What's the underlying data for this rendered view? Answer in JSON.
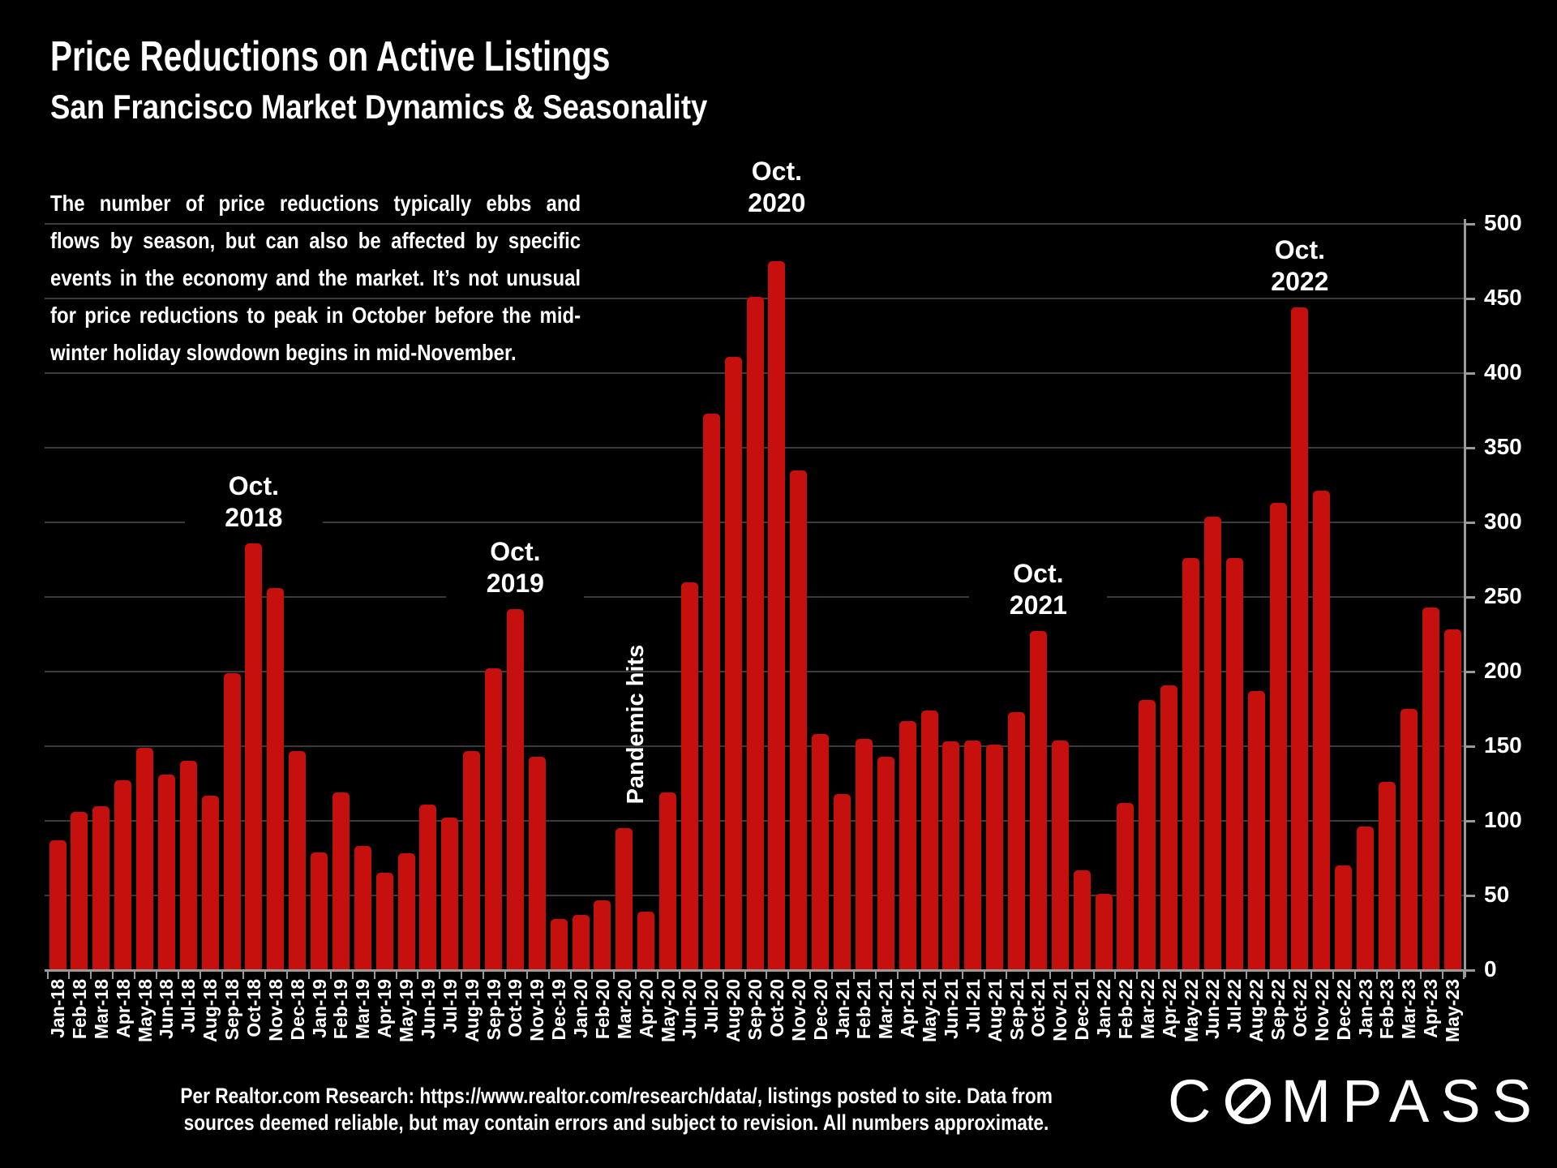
{
  "header": {
    "title": "Price Reductions on Active Listings",
    "subtitle": "San Francisco Market Dynamics & Seasonality"
  },
  "description": {
    "lines": [
      "The number of price reductions typically ebbs and",
      "flows by season, but can also be affected by specific",
      "events in the economy and the market. It’s not unusual",
      "for price reductions to peak in October before the mid-",
      "winter holiday slowdown begins in mid-November."
    ]
  },
  "chart_data": {
    "type": "bar",
    "title": "Price Reductions on Active Listings",
    "categories": [
      "Jan-18",
      "Feb-18",
      "Mar-18",
      "Apr-18",
      "May-18",
      "Jun-18",
      "Jul-18",
      "Aug-18",
      "Sep-18",
      "Oct-18",
      "Nov-18",
      "Dec-18",
      "Jan-19",
      "Feb-19",
      "Mar-19",
      "Apr-19",
      "May-19",
      "Jun-19",
      "Jul-19",
      "Aug-19",
      "Sep-19",
      "Oct-19",
      "Nov-19",
      "Dec-19",
      "Jan-20",
      "Feb-20",
      "Mar-20",
      "Apr-20",
      "May-20",
      "Jun-20",
      "Jul-20",
      "Aug-20",
      "Sep-20",
      "Oct-20",
      "Nov-20",
      "Dec-20",
      "Jan-21",
      "Feb-21",
      "Mar-21",
      "Apr-21",
      "May-21",
      "Jun-21",
      "Jul-21",
      "Aug-21",
      "Sep-21",
      "Oct-21",
      "Nov-21",
      "Dec-21",
      "Jan-22",
      "Feb-22",
      "Mar-22",
      "Apr-22",
      "May-22",
      "Jun-22",
      "Jul-22",
      "Aug-22",
      "Sep-22",
      "Oct-22",
      "Nov-22",
      "Dec-22",
      "Jan-23",
      "Feb-23",
      "Mar-23",
      "Apr-23",
      "May-23"
    ],
    "values": [
      87,
      106,
      110,
      127,
      149,
      131,
      140,
      117,
      199,
      286,
      256,
      147,
      79,
      119,
      83,
      65,
      78,
      111,
      102,
      147,
      202,
      242,
      143,
      34,
      37,
      47,
      95,
      39,
      119,
      260,
      373,
      411,
      451,
      475,
      335,
      158,
      118,
      155,
      143,
      167,
      174,
      153,
      154,
      151,
      173,
      227,
      154,
      67,
      51,
      112,
      181,
      191,
      276,
      304,
      276,
      187,
      313,
      444,
      321,
      70,
      96,
      126,
      175,
      243,
      228
    ],
    "xlabel": "",
    "ylabel": "",
    "ylim": [
      0,
      500
    ],
    "ytick_interval": 50,
    "yticks": [
      0,
      50,
      100,
      150,
      200,
      250,
      300,
      350,
      400,
      450,
      500
    ],
    "y_axis_side": "right",
    "grid": true,
    "legend": false,
    "bar_color": "#c6100e",
    "background_color": "#000000",
    "gridline_color": "#3b3b3b",
    "axis_color": "#9a9a9a",
    "annotations": [
      {
        "month": "Oct-18",
        "lines": [
          "Oct.",
          "2018"
        ]
      },
      {
        "month": "Oct-19",
        "lines": [
          "Oct.",
          "2019"
        ]
      },
      {
        "month": "Oct-20",
        "lines": [
          "Oct.",
          "2020"
        ]
      },
      {
        "month": "Oct-21",
        "lines": [
          "Oct.",
          "2021"
        ]
      },
      {
        "month": "Oct-22",
        "lines": [
          "Oct.",
          "2022"
        ]
      },
      {
        "month": "Mar-20",
        "text": "Pandemic hits",
        "rotated": true
      }
    ]
  },
  "footer": {
    "line1": "Per Realtor.com Research:  https://www.realtor.com/research/data/, listings posted to site. Data from",
    "line2": "sources deemed reliable, but may contain errors and subject to revision. All numbers approximate."
  },
  "logo": {
    "prefix": "C",
    "suffix": "MPASS",
    "o_icon": "compass-needle-slashed-circle"
  }
}
